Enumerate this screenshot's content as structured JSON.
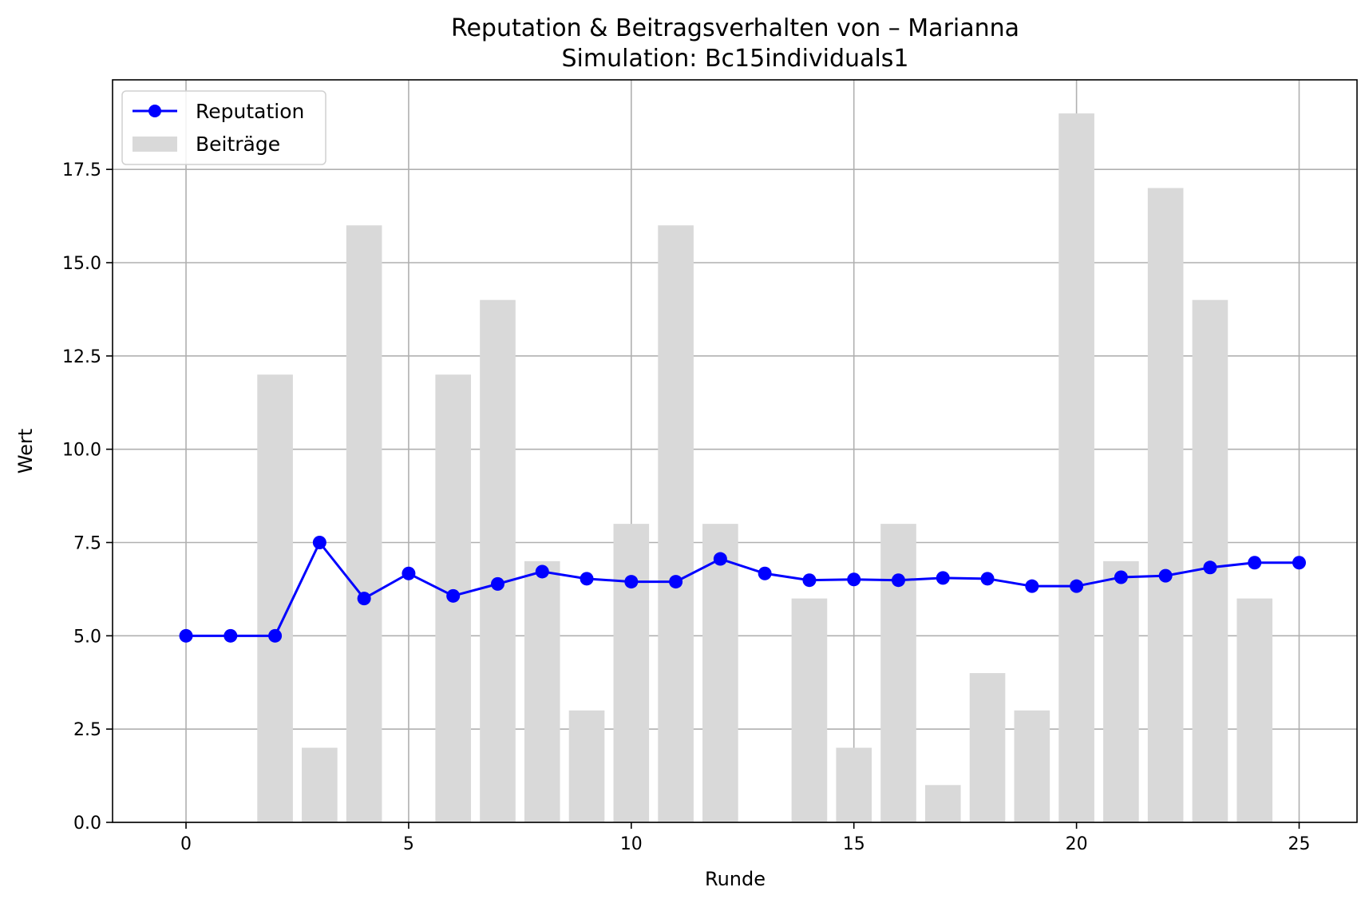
{
  "chart_data": {
    "type": "bar+line",
    "title": "Reputation & Beitragsverhalten von – Marianna",
    "subtitle": "Simulation: Bc15individuals1",
    "xlabel": "Runde",
    "ylabel": "Wert",
    "xlim": [
      -1.65,
      26.3
    ],
    "ylim": [
      0,
      19.9
    ],
    "x_ticks": [
      0,
      5,
      10,
      15,
      20,
      25
    ],
    "y_ticks": [
      0.0,
      2.5,
      5.0,
      7.5,
      10.0,
      12.5,
      15.0,
      17.5
    ],
    "x_tick_labels": [
      "0",
      "5",
      "10",
      "15",
      "20",
      "25"
    ],
    "y_tick_labels": [
      "0.0",
      "2.5",
      "5.0",
      "7.5",
      "10.0",
      "12.5",
      "15.0",
      "17.5"
    ],
    "grid": true,
    "legend_position": "top-left",
    "series": [
      {
        "name": "Reputation",
        "kind": "line",
        "color": "#0000ff",
        "marker": "circle",
        "x": [
          0,
          1,
          2,
          3,
          4,
          5,
          6,
          7,
          8,
          9,
          10,
          11,
          12,
          13,
          14,
          15,
          16,
          17,
          18,
          19,
          20,
          21,
          22,
          23,
          24,
          25
        ],
        "values": [
          5.0,
          5.0,
          5.0,
          7.5,
          6.0,
          6.67,
          6.07,
          6.39,
          6.72,
          6.53,
          6.45,
          6.45,
          7.06,
          6.67,
          6.49,
          6.51,
          6.49,
          6.55,
          6.53,
          6.33,
          6.33,
          6.57,
          6.61,
          6.83,
          6.96,
          6.96
        ]
      },
      {
        "name": "Beiträge",
        "kind": "bar",
        "color": "#d9d9d9",
        "x": [
          0,
          1,
          2,
          3,
          4,
          5,
          6,
          7,
          8,
          9,
          10,
          11,
          12,
          13,
          14,
          15,
          16,
          17,
          18,
          19,
          20,
          21,
          22,
          23,
          24,
          25
        ],
        "values": [
          0,
          0,
          12,
          2,
          16,
          0,
          12,
          14,
          7,
          3,
          8,
          16,
          8,
          0,
          6,
          2,
          8,
          1,
          4,
          3,
          19,
          7,
          17,
          14,
          6,
          0
        ]
      }
    ]
  }
}
